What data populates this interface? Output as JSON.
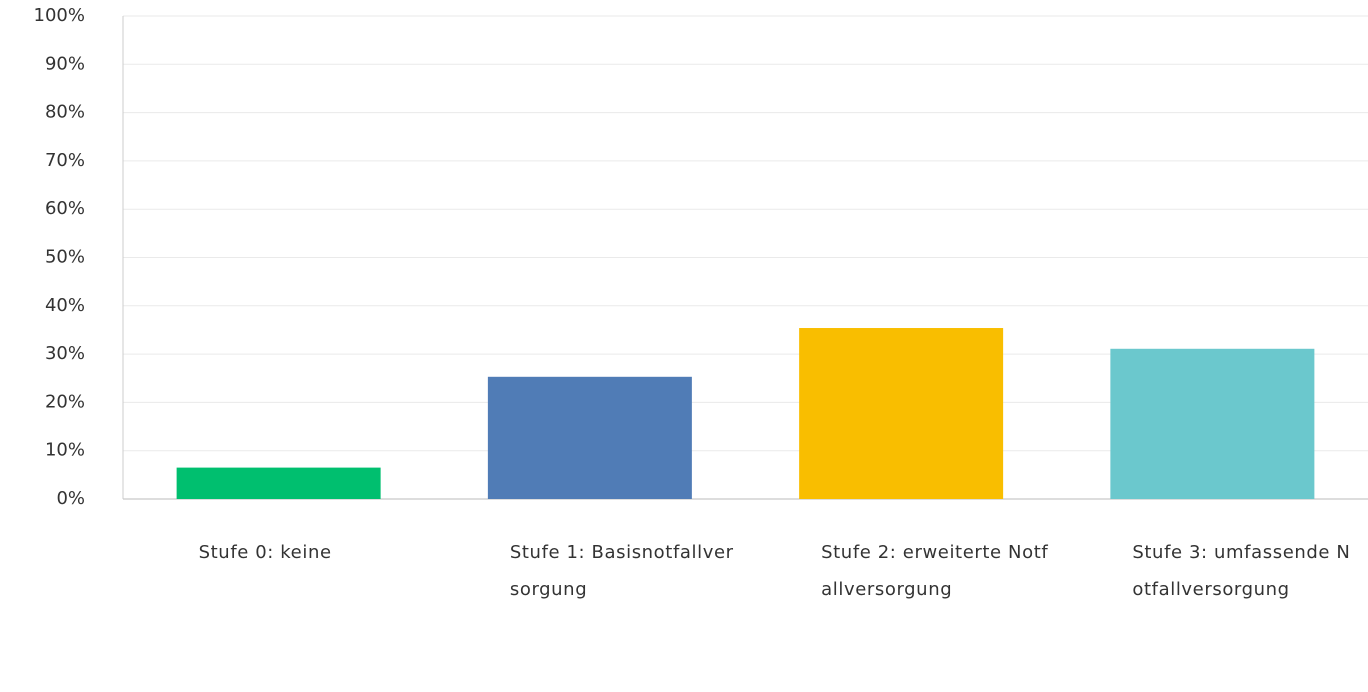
{
  "chart_data": {
    "type": "bar",
    "categories": [
      "Stufe 0: keine",
      "Stufe 1: Basisnotfallversorgung",
      "Stufe 2: erweiterte Notfallversorgung",
      "Stufe 3: umfassende Notfallversorgung"
    ],
    "values": [
      6.5,
      25.3,
      35.4,
      31.1
    ],
    "colors": [
      "#00bf6f",
      "#507cb6",
      "#f9be00",
      "#6bc8cd"
    ],
    "ylim": [
      0,
      100
    ],
    "yticks": [
      {
        "value": 0,
        "label": "0%"
      },
      {
        "value": 10,
        "label": "10%"
      },
      {
        "value": 20,
        "label": "20%"
      },
      {
        "value": 30,
        "label": "30%"
      },
      {
        "value": 40,
        "label": "40%"
      },
      {
        "value": 50,
        "label": "50%"
      },
      {
        "value": 60,
        "label": "60%"
      },
      {
        "value": 70,
        "label": "70%"
      },
      {
        "value": 80,
        "label": "80%"
      },
      {
        "value": 90,
        "label": "90%"
      },
      {
        "value": 100,
        "label": "100%"
      }
    ],
    "grid": true
  }
}
